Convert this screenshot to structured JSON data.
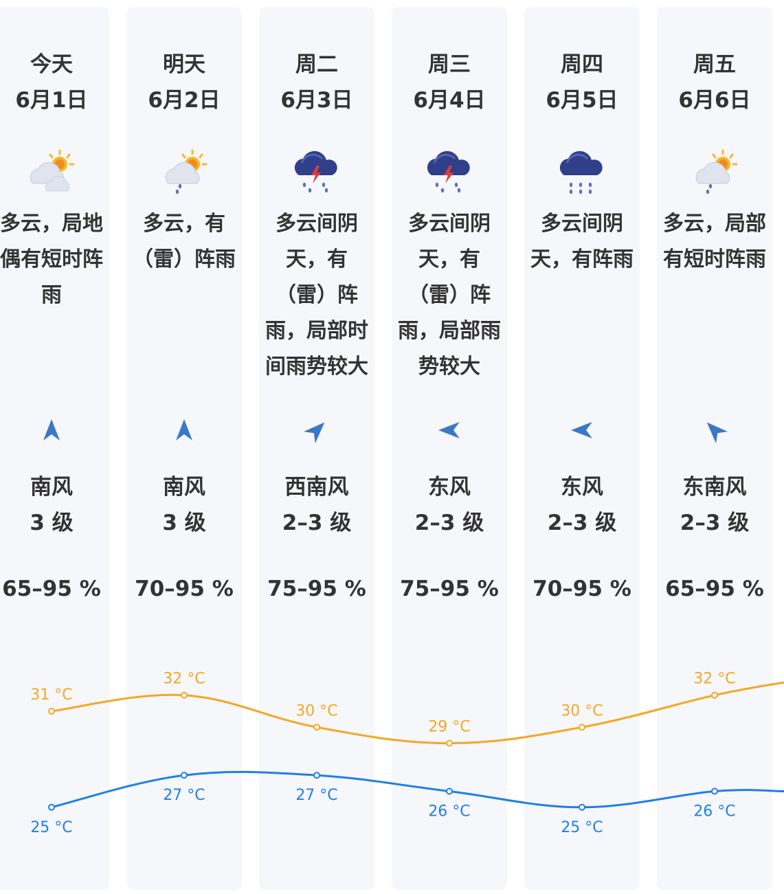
{
  "forecast": [
    {
      "day": "今天",
      "date": "6月1日",
      "icon": "partly-cloudy-icon",
      "description": "多云，局地偶有短时阵雨",
      "wind_arrow": "wind-arrow-north-icon",
      "wind_angle": 0,
      "wind_direction": "南风",
      "wind_level": "3 级",
      "humidity": "65–95 %"
    },
    {
      "day": "明天",
      "date": "6月2日",
      "icon": "sun-cloud-rain-icon",
      "description": "多云，有（雷）阵雨",
      "wind_arrow": "wind-arrow-north-icon",
      "wind_angle": 0,
      "wind_direction": "南风",
      "wind_level": "3 级",
      "humidity": "70–95 %"
    },
    {
      "day": "周二",
      "date": "6月3日",
      "icon": "thunderstorm-icon",
      "description": "多云间阴天，有（雷）阵雨，局部时间雨势较大",
      "wind_arrow": "wind-arrow-northeast-icon",
      "wind_angle": 45,
      "wind_direction": "西南风",
      "wind_level": "2–3 级",
      "humidity": "75–95 %"
    },
    {
      "day": "周三",
      "date": "6月4日",
      "icon": "thunderstorm-icon",
      "description": "多云间阴天，有（雷）阵雨，局部雨势较大",
      "wind_arrow": "wind-arrow-west-icon",
      "wind_angle": 270,
      "wind_direction": "东风",
      "wind_level": "2–3 级",
      "humidity": "75–95 %"
    },
    {
      "day": "周四",
      "date": "6月5日",
      "icon": "rain-cloud-icon",
      "description": "多云间阴天，有阵雨",
      "wind_arrow": "wind-arrow-west-icon",
      "wind_angle": 270,
      "wind_direction": "东风",
      "wind_level": "2–3 级",
      "humidity": "70–95 %"
    },
    {
      "day": "周五",
      "date": "6月6日",
      "icon": "sun-cloud-rain-icon",
      "description": "多云，局部有短时阵雨",
      "wind_arrow": "wind-arrow-northwest-icon",
      "wind_angle": 315,
      "wind_direction": "东南风",
      "wind_level": "2–3 级",
      "humidity": "65–95 %"
    }
  ],
  "chart_data": {
    "type": "line",
    "categories": [
      "6月1日",
      "6月2日",
      "6月3日",
      "6月4日",
      "6月5日",
      "6月6日"
    ],
    "series": [
      {
        "values": [
          31,
          32,
          30,
          29,
          30,
          32
        ],
        "labels": [
          "31 °C",
          "32 °C",
          "30 °C",
          "29 °C",
          "30 °C",
          "32 °C"
        ],
        "color": "#f5a623"
      },
      {
        "values": [
          25,
          27,
          27,
          26,
          25,
          26
        ],
        "labels": [
          "25 °C",
          "27 °C",
          "27 °C",
          "26 °C",
          "25 °C",
          "26 °C"
        ],
        "color": "#1e7fe8"
      }
    ]
  },
  "colors": {
    "high": "#f5a623",
    "low": "#1e7fe8",
    "card": "#f6f7fa",
    "arrow": "#3a78c8"
  }
}
